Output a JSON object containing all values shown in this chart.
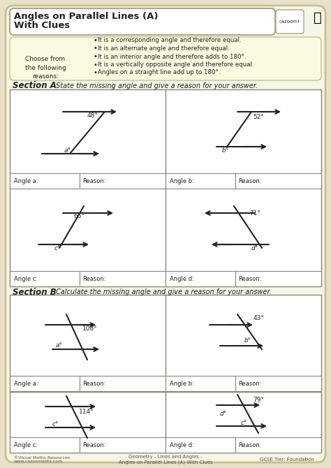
{
  "title": "Angles on Parallel Lines (A)\nWith Clues",
  "bg_color": "#f5f5e8",
  "outer_bg": "#e8e0c8",
  "white": "#ffffff",
  "dark": "#222222",
  "yellow_box_bg": "#fafae0",
  "section_a_label": "Section A",
  "section_a_text": "State the missing angle and give a reason for your answer.",
  "section_b_label": "Section B",
  "section_b_text": "Calculate the missing angle and give a reason for your answer.",
  "reasons": [
    "It is a corresponding angle and therefore equal.",
    "It is an alternate angle and therefore equal.",
    "It is an interior angle and therefore adds to 180°.",
    "It is a vertically opposite angle and therefore equal.",
    "Angles on a straight line add up to 180°."
  ],
  "choose_label": "Choose from\nthe following\nreasons:",
  "angles_a": [
    "48°",
    "52°",
    "65°",
    "71°"
  ],
  "letters_a": [
    "a",
    "b",
    "c",
    "d"
  ],
  "angles_b": [
    "108°",
    "43°",
    "114°",
    "79°"
  ],
  "letters_b": [
    "a",
    "b",
    "c",
    "d"
  ]
}
